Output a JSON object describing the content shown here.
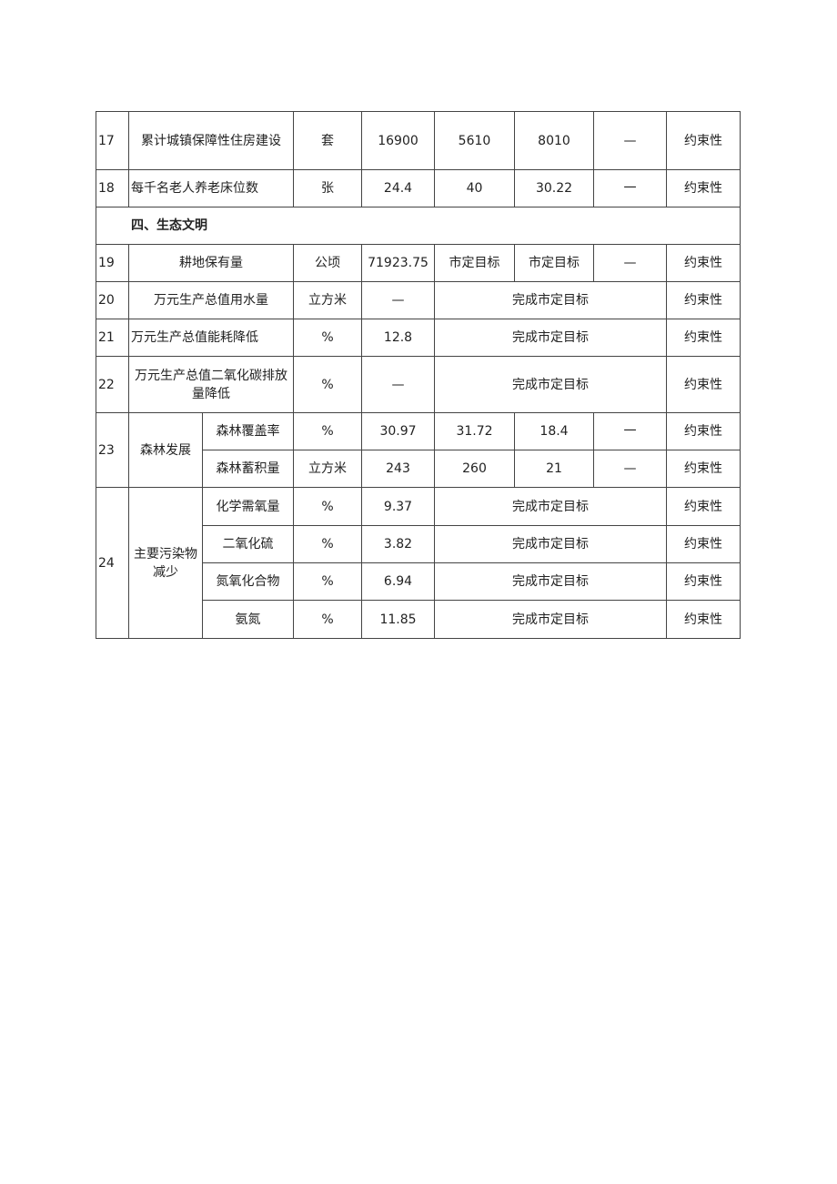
{
  "rows": {
    "r17": {
      "no": "17",
      "name": "累计城镇保障性住房建设",
      "unit": "套",
      "v1": "16900",
      "v2": "5610",
      "v3": "8010",
      "v4": "—",
      "type": "约束性"
    },
    "r18": {
      "no": "18",
      "name": "每千名老人养老床位数",
      "unit": "张",
      "v1": "24.4",
      "v2": "40",
      "v3": "30.22",
      "v4": "一",
      "type": "约束性"
    },
    "section": "四、生态文明",
    "r19": {
      "no": "19",
      "name": "耕地保有量",
      "unit": "公顷",
      "v1": "71923.75",
      "v2": "市定目标",
      "v3": "市定目标",
      "v4": "—",
      "type": "约束性"
    },
    "r20": {
      "no": "20",
      "name": "万元生产总值用水量",
      "unit": "立方米",
      "v1": "—",
      "merged": "完成市定目标",
      "type": "约束性"
    },
    "r21": {
      "no": "21",
      "name": "万元生产总值能耗降低",
      "unit": "%",
      "v1": "12.8",
      "merged": "完成市定目标",
      "type": "约束性"
    },
    "r22": {
      "no": "22",
      "name": "万元生产总值二氧化碳排放量降低",
      "unit": "%",
      "v1": "—",
      "merged": "完成市定目标",
      "type": "约束性"
    },
    "r23": {
      "no": "23",
      "group": "森林发展",
      "a": {
        "name": "森林覆盖率",
        "unit": "%",
        "v1": "30.97",
        "v2": "31.72",
        "v3": "18.4",
        "v4": "一",
        "type": "约束性"
      },
      "b": {
        "name": "森林蓄积量",
        "unit": "立方米",
        "v1": "243",
        "v2": "260",
        "v3": "21",
        "v4": "—",
        "type": "约束性"
      }
    },
    "r24": {
      "no": "24",
      "group": "主要污染物减少",
      "a": {
        "name": "化学需氧量",
        "unit": "%",
        "v1": "9.37",
        "merged": "完成市定目标",
        "type": "约束性"
      },
      "b": {
        "name": "二氧化硫",
        "unit": "%",
        "v1": "3.82",
        "merged": "完成市定目标",
        "type": "约束性"
      },
      "c": {
        "name": "氮氧化合物",
        "unit": "%",
        "v1": "6.94",
        "merged": "完成市定目标",
        "type": "约束性"
      },
      "d": {
        "name": "氨氮",
        "unit": "%",
        "v1": "11.85",
        "merged": "完成市定目标",
        "type": "约束性"
      }
    }
  }
}
